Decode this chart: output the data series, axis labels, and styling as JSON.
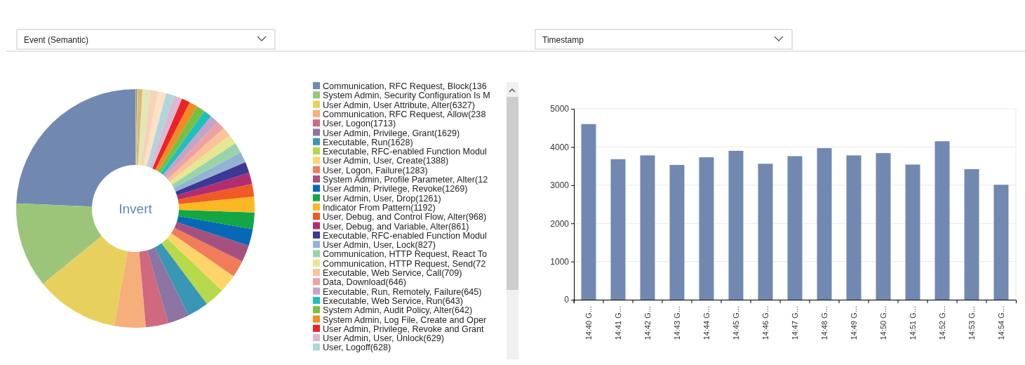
{
  "chart_data": [
    {
      "type": "donut",
      "title": "Event (Semantic)",
      "annotations": [
        "Invert"
      ],
      "legend": "right",
      "categories": [
        "Communication, RFC Request, Block(136",
        "System Admin, Security Configuration Is M",
        "User Admin, User Attribute, Alter(6327)",
        "Communication, RFC Request, Allow(238",
        "User, Logon(1713)",
        "User Admin, Privilege, Grant(1629)",
        "Executable, Run(1628)",
        "Executable, RFC-enabled Function Modul",
        "User Admin, User, Create(1388)",
        "User, Logon, Failure(1283)",
        "System Admin, Profile Parameter, Alter(12",
        "User Admin, Privilege, Revoke(1269)",
        "User Admin, User, Drop(1261)",
        "Indicator From Pattern(1192)",
        "User, Debug, and Control Flow, Alter(968)",
        "User, Debug, and Variable, Alter(861)",
        "Executable, RFC-enabled Function Modul",
        "User Admin, User, Lock(827)",
        "Communication, HTTP Request, React To",
        "Communication, HTTP Request, Send(72",
        "Executable, Web Service, Call(709)",
        "Data, Download(646)",
        "Executable, Run, Remotely, Failure(645)",
        "Executable, Web Service, Run(643)",
        "System Admin, Audit Policy, Alter(642)",
        "System Admin, Log File, Create and Oper",
        "User Admin, Privilege, Revoke and Grant",
        "User Admin, User, Unlock(629)",
        "User, Logoff(628)",
        null,
        null,
        null,
        null,
        null,
        null,
        null,
        null
      ],
      "values": [
        13650,
        6500,
        6327,
        2380,
        1713,
        1629,
        1628,
        1500,
        1388,
        1283,
        1275,
        1269,
        1261,
        1192,
        968,
        861,
        840,
        827,
        780,
        725,
        709,
        646,
        645,
        643,
        642,
        638,
        635,
        629,
        628,
        610,
        600,
        590,
        200,
        120,
        90,
        70,
        50
      ],
      "colors": [
        "#7189b0",
        "#9dc57a",
        "#e8d05e",
        "#f6ae7a",
        "#d0687e",
        "#8c74a3",
        "#3a96b5",
        "#b5d94a",
        "#fcd46a",
        "#f17c5a",
        "#a5507f",
        "#0768b5",
        "#12a744",
        "#fbb823",
        "#f05a24",
        "#b22d6f",
        "#3d3893",
        "#93b3d3",
        "#99d4a9",
        "#e6e792",
        "#f9c499",
        "#eda2a2",
        "#c4a3c9",
        "#20bfbf",
        "#77c044",
        "#f38a22",
        "#ec2227",
        "#dab9d1",
        "#aed6dc",
        "#fde0c5",
        "#f7d3b8",
        "#dfe9b8",
        "#f9a870",
        "#9dc57a",
        "#e8d05e",
        "#7189b0",
        "#f6ae7a"
      ]
    },
    {
      "type": "bar",
      "title": "Timestamp",
      "color": "#7189b0",
      "grid": "y",
      "categories": [
        "14:40 G...",
        "14:41 G...",
        "14:42 G...",
        "14:43 G...",
        "14:44 G...",
        "14:45 G...",
        "14:46 G...",
        "14:47 G...",
        "14:48 G...",
        "14:49 G...",
        "14:50 G...",
        "14:51 G...",
        "14:52 G...",
        "14:53 G...",
        "14:54 G..."
      ],
      "values": [
        4600,
        3680,
        3780,
        3530,
        3730,
        3900,
        3560,
        3760,
        3970,
        3780,
        3840,
        3540,
        4150,
        3420,
        3010
      ],
      "ylim": [
        0,
        5000
      ],
      "yticks": [
        0,
        1000,
        2000,
        3000,
        4000,
        5000
      ]
    }
  ]
}
